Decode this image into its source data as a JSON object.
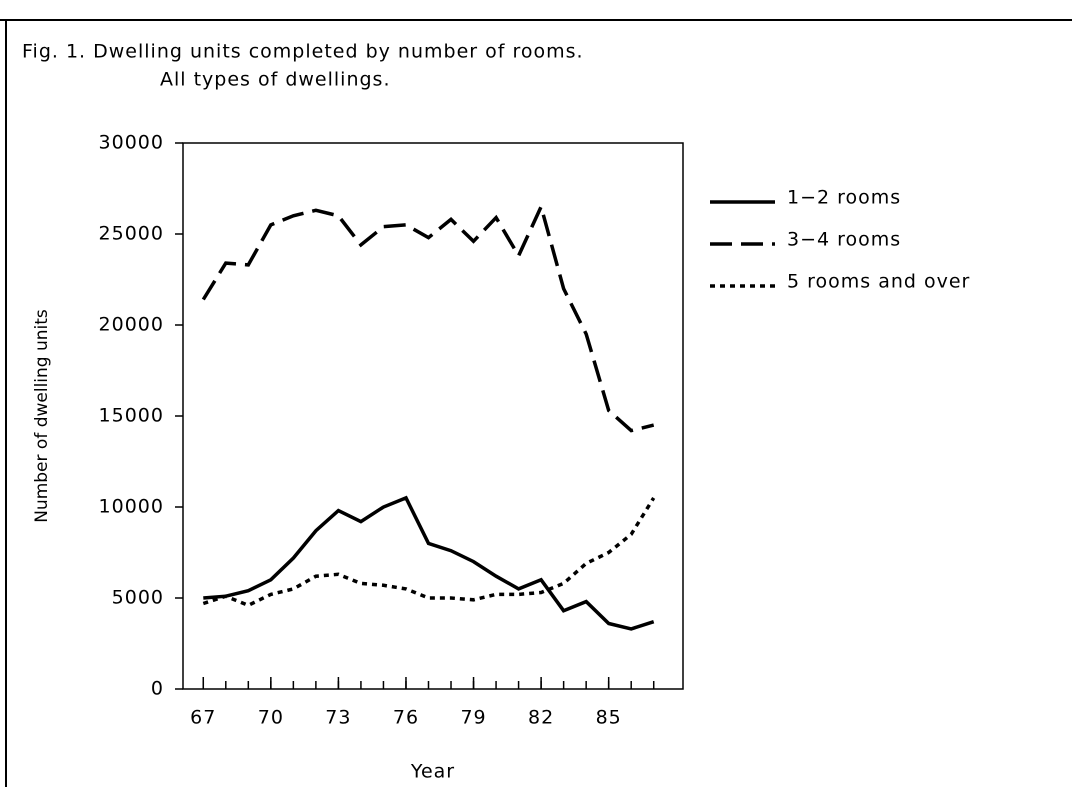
{
  "chart_data": {
    "type": "line",
    "title": "Fig. 1. Dwelling units completed by number of rooms.",
    "subtitle": "All types of dwellings.",
    "x_label": "Year",
    "y_label": "Number of dwelling units",
    "x": [
      67,
      68,
      69,
      70,
      71,
      72,
      73,
      74,
      75,
      76,
      77,
      78,
      79,
      80,
      81,
      82,
      83,
      84,
      85,
      86,
      87
    ],
    "series": [
      {
        "name": "1−2 rooms",
        "color": "#000000",
        "style": "solid",
        "values": [
          5000,
          5100,
          5400,
          6000,
          7200,
          8700,
          9800,
          9200,
          10000,
          10500,
          8000,
          7600,
          7000,
          6200,
          5500,
          6000,
          4300,
          4800,
          3600,
          3300,
          3700
        ]
      },
      {
        "name": "3−4 rooms",
        "color": "#000000",
        "style": "dashed",
        "values": [
          21400,
          23400,
          23300,
          25500,
          26000,
          26300,
          26000,
          24400,
          25400,
          25500,
          24800,
          25800,
          24600,
          25900,
          23800,
          26500,
          22000,
          19500,
          15300,
          14200,
          14500
        ]
      },
      {
        "name": "5 rooms and over",
        "color": "#000000",
        "style": "dotted",
        "values": [
          4700,
          5100,
          4600,
          5200,
          5500,
          6200,
          6300,
          5800,
          5700,
          5500,
          5000,
          5000,
          4900,
          5200,
          5200,
          5300,
          5800,
          6900,
          7500,
          8500,
          10500
        ]
      }
    ],
    "xlim": [
      66.1,
      88.3
    ],
    "xticks": [
      67,
      70,
      73,
      76,
      79,
      82,
      85
    ],
    "ylim": [
      0,
      30000
    ],
    "yticks": [
      0,
      5000,
      10000,
      15000,
      20000,
      25000,
      30000
    ],
    "grid": false,
    "legend": "right"
  }
}
